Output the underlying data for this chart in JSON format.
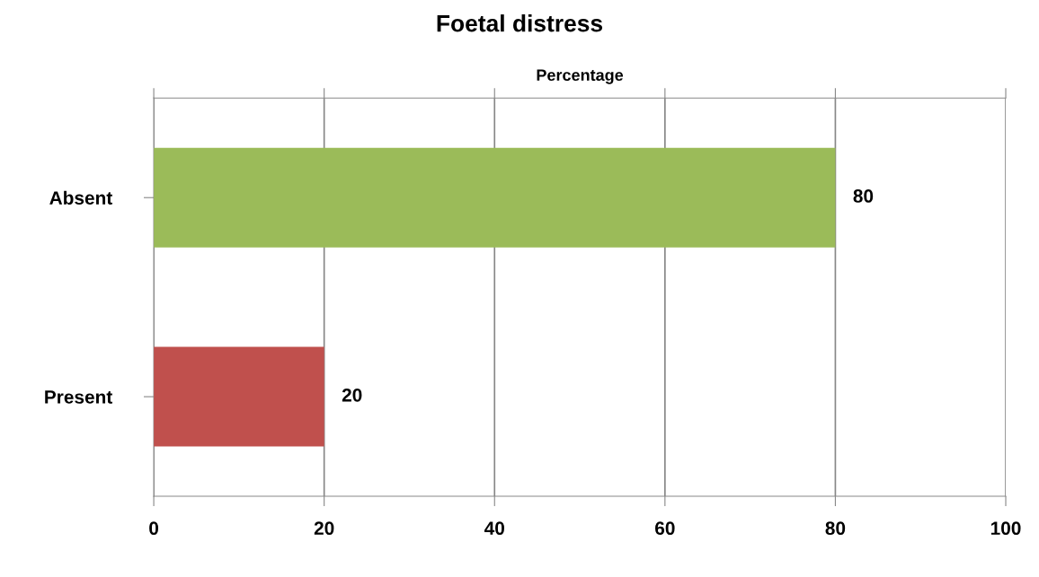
{
  "chart_data": {
    "type": "bar",
    "orientation": "horizontal",
    "title": "Foetal distress",
    "xlabel": "Percentage",
    "categories": [
      "Absent",
      "Present"
    ],
    "values": [
      80,
      20
    ],
    "colors": [
      "#9bbb59",
      "#c0504d"
    ],
    "xlim": [
      0,
      100
    ],
    "xticks": [
      0,
      20,
      40,
      60,
      80,
      100
    ],
    "grid": "x",
    "data_labels": true
  }
}
